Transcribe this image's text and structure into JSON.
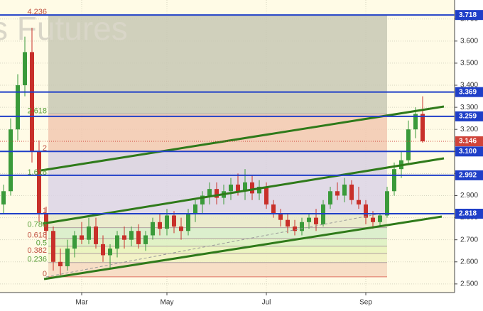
{
  "chart_data": {
    "type": "candlestick",
    "watermark": "s Futures",
    "categories": [
      null,
      null,
      null,
      null,
      null,
      null,
      null,
      null,
      null,
      null,
      null,
      "Mar",
      null,
      null,
      null,
      null,
      null,
      null,
      null,
      null,
      null,
      null,
      null,
      "May",
      null,
      null,
      null,
      null,
      null,
      null,
      null,
      null,
      null,
      null,
      null,
      null,
      null,
      "Jul",
      null,
      null,
      null,
      null,
      null,
      null,
      null,
      null,
      null,
      null,
      null,
      null,
      null,
      "Sep",
      null,
      null,
      null,
      null,
      null,
      null,
      null,
      null
    ],
    "open": [
      2.86,
      2.92,
      3.2,
      3.4,
      3.55,
      3.1,
      2.82,
      2.74,
      2.6,
      2.58,
      2.66,
      2.72,
      2.7,
      2.76,
      2.68,
      2.63,
      2.66,
      2.72,
      2.7,
      2.74,
      2.68,
      2.72,
      2.78,
      2.75,
      2.81,
      2.76,
      2.74,
      2.82,
      2.86,
      2.9,
      2.93,
      2.89,
      2.92,
      2.95,
      2.92,
      2.96,
      2.91,
      2.94,
      2.86,
      2.82,
      2.79,
      2.76,
      2.74,
      2.78,
      2.8,
      2.77,
      2.86,
      2.92,
      2.9,
      2.95,
      2.88,
      2.86,
      2.8,
      2.78,
      2.81,
      2.92,
      3.02,
      3.06,
      3.2,
      3.27
    ],
    "high": [
      2.95,
      3.25,
      3.45,
      3.62,
      3.66,
      3.15,
      2.85,
      2.76,
      2.66,
      2.7,
      2.74,
      2.78,
      2.8,
      2.8,
      2.72,
      2.68,
      2.74,
      2.76,
      2.76,
      2.77,
      2.74,
      2.8,
      2.82,
      2.84,
      2.83,
      2.8,
      2.84,
      2.88,
      2.92,
      2.96,
      2.96,
      2.95,
      2.98,
      3.0,
      3.02,
      2.99,
      2.97,
      2.96,
      2.88,
      2.84,
      2.82,
      2.79,
      2.8,
      2.82,
      2.84,
      2.88,
      2.94,
      2.96,
      2.98,
      2.97,
      2.94,
      2.88,
      2.83,
      2.82,
      2.94,
      3.05,
      3.1,
      3.24,
      3.3,
      3.35
    ],
    "low": [
      2.82,
      2.9,
      3.15,
      3.35,
      3.05,
      2.78,
      2.7,
      2.56,
      2.54,
      2.56,
      2.62,
      2.68,
      2.68,
      2.66,
      2.6,
      2.57,
      2.62,
      2.66,
      2.67,
      2.66,
      2.65,
      2.7,
      2.72,
      2.72,
      2.73,
      2.7,
      2.72,
      2.78,
      2.82,
      2.86,
      2.86,
      2.86,
      2.88,
      2.9,
      2.88,
      2.88,
      2.88,
      2.84,
      2.8,
      2.76,
      2.73,
      2.72,
      2.72,
      2.75,
      2.74,
      2.76,
      2.84,
      2.88,
      2.87,
      2.86,
      2.84,
      2.77,
      2.75,
      2.76,
      2.8,
      2.9,
      2.98,
      3.04,
      3.16,
      3.14
    ],
    "close": [
      2.92,
      3.2,
      3.4,
      3.55,
      3.1,
      2.82,
      2.74,
      2.6,
      2.58,
      2.66,
      2.72,
      2.7,
      2.76,
      2.68,
      2.63,
      2.66,
      2.72,
      2.7,
      2.74,
      2.68,
      2.72,
      2.78,
      2.75,
      2.81,
      2.76,
      2.74,
      2.82,
      2.86,
      2.9,
      2.93,
      2.89,
      2.92,
      2.95,
      2.92,
      2.96,
      2.91,
      2.94,
      2.86,
      2.82,
      2.79,
      2.76,
      2.74,
      2.78,
      2.8,
      2.77,
      2.86,
      2.92,
      2.9,
      2.95,
      2.88,
      2.86,
      2.8,
      2.78,
      2.81,
      2.92,
      3.02,
      3.06,
      3.2,
      3.27,
      3.146
    ],
    "up_color": "#3a9a3a",
    "down_color": "#c8302a",
    "ylim": [
      2.461,
      3.786
    ],
    "yticks": [
      {
        "value": 2.5,
        "label": "2.500"
      },
      {
        "value": 2.6,
        "label": "2.600"
      },
      {
        "value": 2.7,
        "label": "2.700"
      },
      {
        "value": 2.8,
        "label": "2.800"
      },
      {
        "value": 2.9,
        "label": "2.900"
      },
      {
        "value": 3.0,
        "label": "3.000"
      },
      {
        "value": 3.1,
        "label": "3.100"
      },
      {
        "value": 3.2,
        "label": "3.200"
      },
      {
        "value": 3.3,
        "label": "3.300"
      },
      {
        "value": 3.4,
        "label": "3.400"
      },
      {
        "value": 3.5,
        "label": "3.500"
      },
      {
        "value": 3.6,
        "label": "3.600"
      },
      {
        "value": 3.7,
        "label": "3.700"
      }
    ],
    "grid": true,
    "levels": [
      3.718,
      3.369,
      3.259,
      {
        "value": 3.1,
        "label": "3.100"
      },
      2.992,
      2.818
    ],
    "level_color": "#1f3fc8",
    "last_price": 3.146,
    "last_price_color": "#d0443a",
    "fibonacci": [
      {
        "ratio": 4.236,
        "price": 3.718,
        "color": "#c8c8b4"
      },
      {
        "ratio": 2.618,
        "price": 3.27,
        "color": "#f2c8b0"
      },
      {
        "ratio": 2,
        "price": 3.1,
        "color": "#d8d0e0"
      },
      {
        "ratio": 1.618,
        "price": 2.992,
        "color": "#dcd4e6"
      },
      {
        "ratio": 1,
        "price": 2.818,
        "color": "#e8e8c8"
      },
      {
        "ratio": 0.786,
        "price": 2.755,
        "color": "#d6ecc8"
      },
      {
        "ratio": 0.618,
        "price": 2.706,
        "color": "#dcf0c0"
      },
      {
        "ratio": 0.5,
        "price": 2.671,
        "color": "#e8f2b8"
      },
      {
        "ratio": 0.382,
        "price": 2.638,
        "color": "#f0f0c0"
      },
      {
        "ratio": 0.236,
        "price": 2.597,
        "color": "#f6d8c0"
      },
      {
        "ratio": 0,
        "price": 2.532,
        "color": "#e07060"
      }
    ]
  }
}
